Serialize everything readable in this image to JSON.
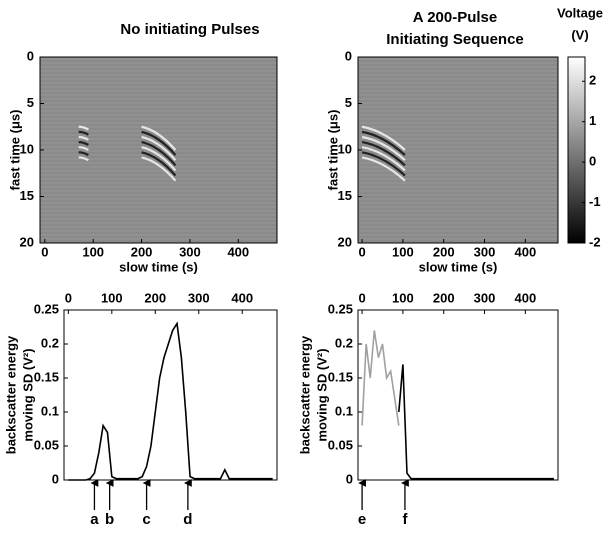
{
  "chart_data": [
    {
      "type": "heatmap",
      "title": [
        "No initiating Pulses"
      ],
      "xlabel": "slow time (s)",
      "ylabel": "fast time (μs)",
      "xlim": [
        -10,
        480
      ],
      "ylim": [
        20,
        0
      ],
      "xticks": [
        0,
        100,
        200,
        300,
        400
      ],
      "yticks": [
        0,
        5,
        10,
        15,
        20
      ]
    },
    {
      "type": "heatmap",
      "title": [
        "A 200-Pulse",
        "Initiating   Sequence"
      ],
      "xlabel": "slow time (s)",
      "ylabel": "fast time (μs)",
      "xlim": [
        -10,
        480
      ],
      "ylim": [
        20,
        0
      ],
      "xticks": [
        0,
        100,
        200,
        300,
        400
      ],
      "yticks": [
        0,
        5,
        10,
        15,
        20
      ],
      "colorbar": {
        "label": [
          "Voltage",
          "(V)"
        ],
        "lim": [
          -2,
          2.6
        ],
        "ticks": [
          -2,
          -1,
          0,
          1,
          2
        ]
      }
    },
    {
      "type": "line",
      "ylabel": [
        "backscatter energy",
        "moving SD (V²)"
      ],
      "xlim": [
        -10,
        480
      ],
      "ylim": [
        0,
        0.25
      ],
      "xticks": [
        0,
        100,
        200,
        300,
        400
      ],
      "yticks": [
        0,
        0.05,
        0.1,
        0.15,
        0.2,
        0.25
      ],
      "x": [
        0,
        10,
        20,
        30,
        40,
        50,
        60,
        70,
        80,
        90,
        100,
        110,
        120,
        130,
        140,
        150,
        160,
        170,
        180,
        190,
        200,
        210,
        220,
        230,
        240,
        250,
        260,
        270,
        280,
        290,
        300,
        310,
        320,
        330,
        340,
        350,
        360,
        370,
        380,
        390,
        400,
        410,
        420,
        430,
        440,
        450,
        460,
        470
      ],
      "series": [
        {
          "color": "#000000",
          "values": [
            0,
            0,
            0,
            0,
            0,
            0.002,
            0.01,
            0.04,
            0.08,
            0.07,
            0.005,
            0.002,
            0.002,
            0.002,
            0.002,
            0.002,
            0.002,
            0.005,
            0.02,
            0.05,
            0.1,
            0.15,
            0.18,
            0.2,
            0.22,
            0.23,
            0.18,
            0.1,
            0.005,
            0.002,
            0.002,
            0.002,
            0.002,
            0.002,
            0.002,
            0.002,
            0.015,
            0.002,
            0.002,
            0.002,
            0.002,
            0.002,
            0.002,
            0.002,
            0.002,
            0.002,
            0.002,
            0.002
          ]
        }
      ],
      "annotations": [
        {
          "label": "a",
          "x": 60
        },
        {
          "label": "b",
          "x": 95
        },
        {
          "label": "c",
          "x": 180
        },
        {
          "label": "d",
          "x": 275
        }
      ]
    },
    {
      "type": "line",
      "ylabel": [
        "backscatter energy",
        "moving SD (V²)"
      ],
      "xlim": [
        -10,
        480
      ],
      "ylim": [
        0,
        0.25
      ],
      "xticks": [
        0,
        100,
        200,
        300,
        400
      ],
      "yticks": [
        0,
        0.05,
        0.1,
        0.15,
        0.2,
        0.25
      ],
      "x": [
        0,
        10,
        20,
        30,
        40,
        50,
        60,
        70,
        80,
        90,
        100,
        110,
        120,
        130,
        140,
        150,
        160,
        170,
        180,
        190,
        200,
        210,
        220,
        230,
        240,
        250,
        260,
        270,
        280,
        290,
        300,
        310,
        320,
        330,
        340,
        350,
        360,
        370,
        380,
        390,
        400,
        410,
        420,
        430,
        440,
        450,
        460,
        470
      ],
      "series": [
        {
          "color": "#a0a0a0",
          "values": [
            0.08,
            0.2,
            0.15,
            0.22,
            0.18,
            0.2,
            0.15,
            0.16,
            0.12,
            0.08,
            null,
            null,
            null,
            null,
            null,
            null,
            null,
            null,
            null,
            null,
            null,
            null,
            null,
            null,
            null,
            null,
            null,
            null,
            null,
            null,
            null,
            null,
            null,
            null,
            null,
            null,
            null,
            null,
            null,
            null,
            null,
            null,
            null,
            null,
            null,
            null,
            null,
            null
          ]
        },
        {
          "color": "#000000",
          "values": [
            null,
            null,
            null,
            null,
            null,
            null,
            null,
            null,
            null,
            0.1,
            0.17,
            0.01,
            0.002,
            0.002,
            0.002,
            0.002,
            0.002,
            0.002,
            0.002,
            0.002,
            0.002,
            0.002,
            0.002,
            0.002,
            0.002,
            0.002,
            0.002,
            0.002,
            0.002,
            0.002,
            0.002,
            0.002,
            0.002,
            0.002,
            0.002,
            0.002,
            0.002,
            0.002,
            0.002,
            0.002,
            0.002,
            0.002,
            0.002,
            0.002,
            0.002,
            0.002,
            0.002,
            0.002
          ]
        }
      ],
      "annotations": [
        {
          "label": "e",
          "x": 0
        },
        {
          "label": "f",
          "x": 105
        }
      ]
    }
  ]
}
